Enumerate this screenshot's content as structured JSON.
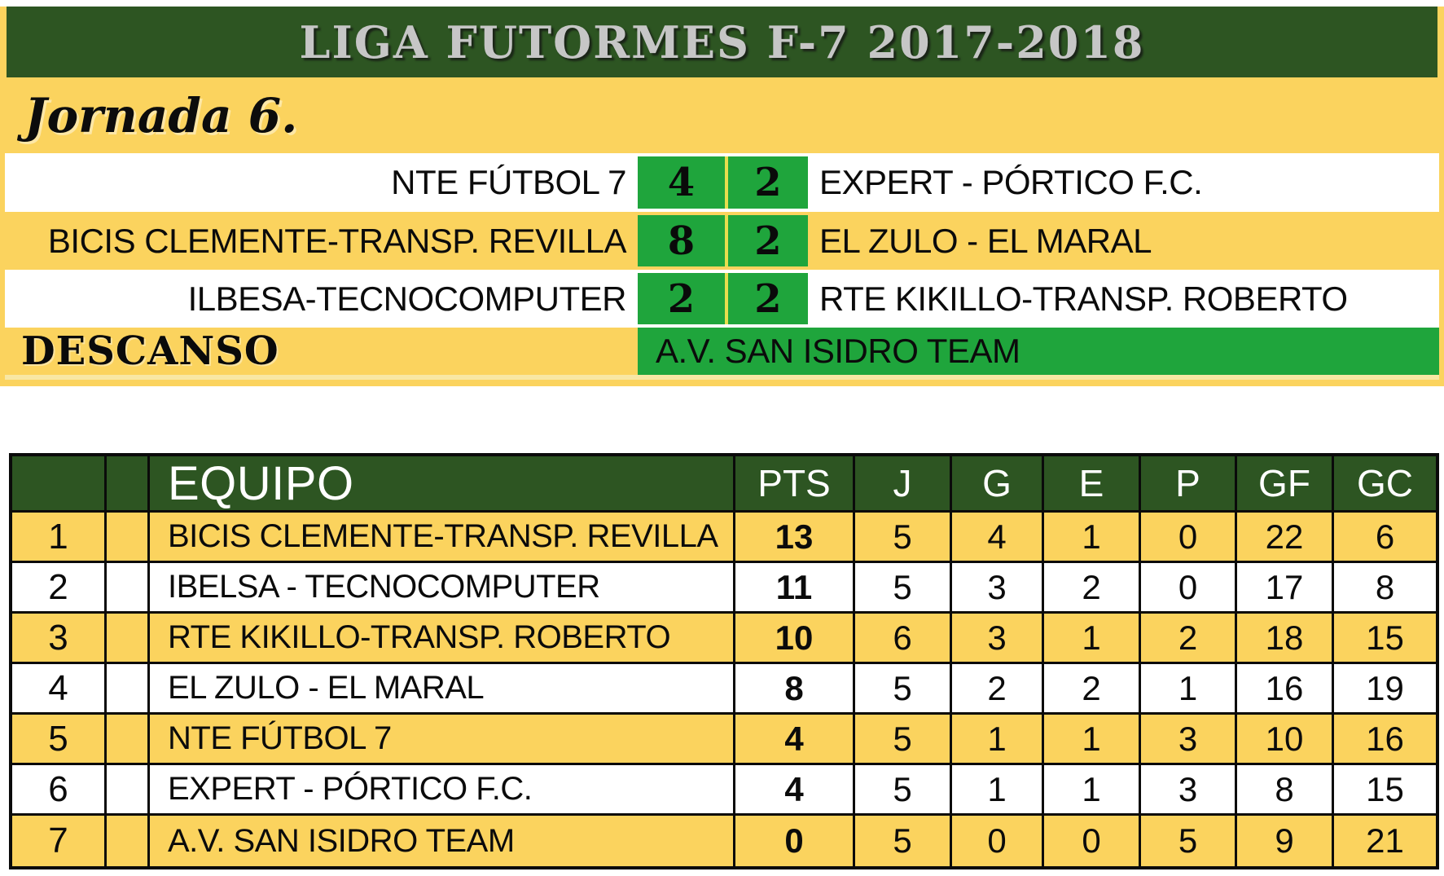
{
  "banner": {
    "title": "LIGA FUTORMES F-7 2017-2018"
  },
  "jornada": {
    "label": "Jornada 6."
  },
  "matches": {
    "rows": [
      {
        "home": "NTE FÚTBOL 7",
        "home_score": "4",
        "away_score": "2",
        "away": "EXPERT - PÓRTICO F.C."
      },
      {
        "home": "BICIS CLEMENTE-TRANSP. REVILLA",
        "home_score": "8",
        "away_score": "2",
        "away": "EL ZULO - EL MARAL"
      },
      {
        "home": "ILBESA-TECNOCOMPUTER",
        "home_score": "2",
        "away_score": "2",
        "away": "RTE KIKILLO-TRANSP. ROBERTO"
      }
    ],
    "rest": {
      "label": "DESCANSO",
      "team": "A.V. SAN ISIDRO TEAM"
    }
  },
  "standings": {
    "headers": {
      "equipo": "EQUIPO",
      "pts": "PTS",
      "j": "J",
      "g": "G",
      "e": "E",
      "p": "P",
      "gf": "GF",
      "gc": "GC"
    },
    "rows": [
      {
        "pos": "1",
        "team": "BICIS CLEMENTE-TRANSP. REVILLA",
        "pts": "13",
        "j": "5",
        "g": "4",
        "e": "1",
        "p": "0",
        "gf": "22",
        "gc": "6"
      },
      {
        "pos": "2",
        "team": "IBELSA - TECNOCOMPUTER",
        "pts": "11",
        "j": "5",
        "g": "3",
        "e": "2",
        "p": "0",
        "gf": "17",
        "gc": "8"
      },
      {
        "pos": "3",
        "team": "RTE KIKILLO-TRANSP. ROBERTO",
        "pts": "10",
        "j": "6",
        "g": "3",
        "e": "1",
        "p": "2",
        "gf": "18",
        "gc": "15"
      },
      {
        "pos": "4",
        "team": "EL ZULO - EL MARAL",
        "pts": "8",
        "j": "5",
        "g": "2",
        "e": "2",
        "p": "1",
        "gf": "16",
        "gc": "19"
      },
      {
        "pos": "5",
        "team": "NTE FÚTBOL 7",
        "pts": "4",
        "j": "5",
        "g": "1",
        "e": "1",
        "p": "3",
        "gf": "10",
        "gc": "16"
      },
      {
        "pos": "6",
        "team": "EXPERT - PÓRTICO F.C.",
        "pts": "4",
        "j": "5",
        "g": "1",
        "e": "1",
        "p": "3",
        "gf": "8",
        "gc": "15"
      },
      {
        "pos": "7",
        "team": "A.V. SAN ISIDRO TEAM",
        "pts": "0",
        "j": "5",
        "g": "0",
        "e": "0",
        "p": "5",
        "gf": "9",
        "gc": "21"
      }
    ]
  },
  "colors": {
    "yellow": "#FBD35E",
    "dark_green": "#2D5522",
    "bright_green": "#1FA53C",
    "score_divider": "#E6DE4E",
    "title_silver": "#C6C6C6"
  }
}
